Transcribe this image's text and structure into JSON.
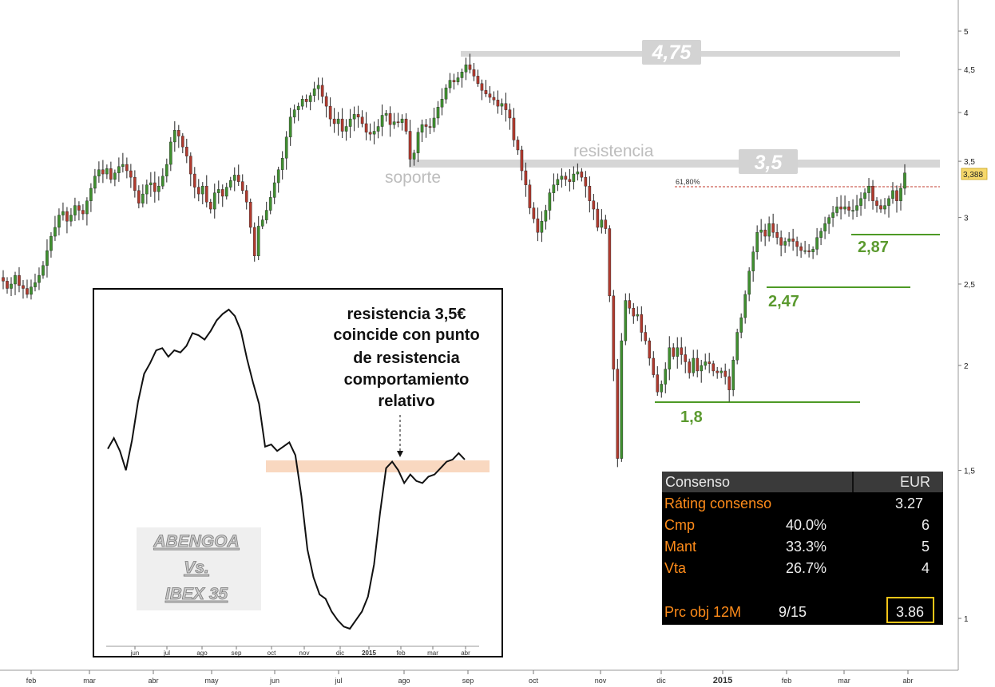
{
  "chart_data": [
    {
      "type": "candlestick",
      "title": "",
      "y_scale": "log",
      "ylim": [
        0.88,
        5.3
      ],
      "y_ticks": [
        "5",
        "4,5",
        "4",
        "3,5",
        "3",
        "2,5",
        "2",
        "1,5",
        "1"
      ],
      "y_tick_values": [
        5,
        4.5,
        4,
        3.5,
        3,
        2.5,
        2,
        1.5,
        1
      ],
      "x_ticks": [
        "feb",
        "mar",
        "abr",
        "may",
        "jun",
        "jul",
        "ago",
        "sep",
        "oct",
        "nov",
        "dic",
        "2015",
        "feb",
        "mar",
        "abr"
      ],
      "last_price_label": "3,388",
      "fibonacci_label": "61,80%",
      "annotations": [
        {
          "text": "4,75",
          "value": 4.75,
          "style": "gray-band"
        },
        {
          "text": "3,5",
          "value": 3.5,
          "style": "gray-band"
        },
        {
          "text": "resistencia",
          "style": "gray-text"
        },
        {
          "text": "soporte",
          "style": "gray-text"
        },
        {
          "text": "2,87",
          "value": 2.87,
          "style": "green-support"
        },
        {
          "text": "2,47",
          "value": 2.47,
          "style": "green-support"
        },
        {
          "text": "1,8",
          "value": 1.8,
          "style": "green-support"
        }
      ],
      "series": [
        {
          "values": [
            2.52,
            2.47,
            2.5,
            2.56,
            2.49,
            2.47,
            2.43,
            2.48,
            2.51,
            2.56,
            2.63,
            2.74,
            2.85,
            2.92,
            3.02,
            3.05,
            2.97,
            3.02,
            3.1,
            3.06,
            3.03,
            3.14,
            3.25,
            3.36,
            3.42,
            3.38,
            3.43,
            3.33,
            3.39,
            3.45,
            3.47,
            3.41,
            3.35,
            3.23,
            3.12,
            3.2,
            3.28,
            3.3,
            3.22,
            3.27,
            3.36,
            3.47,
            3.69,
            3.81,
            3.75,
            3.64,
            3.55,
            3.38,
            3.26,
            3.2,
            3.27,
            3.13,
            3.07,
            3.21,
            3.24,
            3.18,
            3.26,
            3.32,
            3.37,
            3.31,
            3.23,
            3.13,
            2.92,
            2.7,
            2.93,
            2.98,
            3.06,
            3.17,
            3.3,
            3.42,
            3.53,
            3.74,
            3.95,
            4.03,
            4.07,
            4.15,
            4.12,
            4.19,
            4.27,
            4.31,
            4.18,
            4.07,
            3.93,
            3.88,
            3.93,
            3.8,
            3.85,
            3.93,
            3.98,
            3.95,
            3.88,
            3.79,
            3.77,
            3.8,
            3.85,
            3.97,
            3.99,
            3.87,
            3.9,
            3.89,
            3.93,
            3.8,
            3.52,
            3.58,
            3.79,
            3.87,
            3.85,
            3.84,
            3.94,
            4.06,
            4.15,
            4.28,
            4.37,
            4.35,
            4.4,
            4.47,
            4.56,
            4.5,
            4.42,
            4.33,
            4.25,
            4.21,
            4.17,
            4.14,
            4.07,
            4.1,
            4.03,
            3.94,
            3.71,
            3.61,
            3.41,
            3.28,
            3.08,
            2.99,
            2.88,
            2.97,
            3.06,
            3.21,
            3.28,
            3.33,
            3.36,
            3.33,
            3.31,
            3.38,
            3.4,
            3.35,
            3.27,
            3.14,
            3.07,
            2.92,
            2.98,
            2.91,
            2.42,
            1.98,
            1.55,
            2.14,
            2.39,
            2.34,
            2.29,
            2.3,
            2.19,
            2.14,
            2.04,
            1.95,
            1.86,
            1.9,
            1.98,
            2.1,
            2.05,
            2.1,
            2.06,
            2.02,
            1.96,
            2.04,
            1.97,
            2.0,
            2.02,
            2.01,
            1.97,
            1.96,
            1.97,
            1.94,
            1.87,
            2.03,
            2.19,
            2.28,
            2.43,
            2.59,
            2.73,
            2.88,
            2.9,
            2.85,
            2.95,
            2.88,
            2.84,
            2.78,
            2.81,
            2.83,
            2.81,
            2.77,
            2.74,
            2.74,
            2.73,
            2.75,
            2.84,
            2.89,
            2.95,
            3.0,
            3.04,
            3.09,
            3.07,
            3.09,
            3.06,
            3.06,
            3.1,
            3.16,
            3.21,
            3.27,
            3.14,
            3.1,
            3.07,
            3.1,
            3.16,
            3.23,
            3.14,
            3.25,
            3.39
          ]
        }
      ]
    },
    {
      "type": "line",
      "title": "",
      "x_ticks": [
        "jun",
        "jul",
        "ago",
        "sep",
        "oct",
        "nov",
        "dic",
        "2015",
        "feb",
        "mar",
        "abr"
      ],
      "highlight_band_label": "",
      "series": [
        {
          "values": [
            1.07,
            1.12,
            1.06,
            0.97,
            1.11,
            1.29,
            1.42,
            1.47,
            1.53,
            1.54,
            1.5,
            1.53,
            1.52,
            1.55,
            1.61,
            1.6,
            1.58,
            1.62,
            1.67,
            1.7,
            1.72,
            1.69,
            1.62,
            1.49,
            1.38,
            1.28,
            1.08,
            1.09,
            1.06,
            1.08,
            1.1,
            1.04,
            0.85,
            0.6,
            0.47,
            0.39,
            0.37,
            0.31,
            0.27,
            0.24,
            0.23,
            0.27,
            0.31,
            0.38,
            0.53,
            0.77,
            0.98,
            1.01,
            0.97,
            0.91,
            0.95,
            0.92,
            0.91,
            0.94,
            0.95,
            0.98,
            1.01,
            1.02,
            1.05,
            1.02
          ]
        }
      ]
    }
  ],
  "inset": {
    "caption_lines": [
      "resistencia 3,5€",
      "coincide con punto",
      "de resistencia",
      "comportamiento",
      "relativo"
    ],
    "logo_lines": [
      "ABENGOA",
      "Vs.",
      "IBEX 35"
    ]
  },
  "consensus": {
    "header_label": "Consenso",
    "header_currency": "EUR",
    "rating_label": "Ráting consenso",
    "rating_value": "3.27",
    "rows": [
      {
        "label": "Cmp",
        "pct": "40.0%",
        "count": "6"
      },
      {
        "label": "Mant",
        "pct": "33.3%",
        "count": "5"
      },
      {
        "label": "Vta",
        "pct": "26.7%",
        "count": "4"
      }
    ],
    "target_label": "Prc obj 12M",
    "target_date": "9/15",
    "target_value": "3.86"
  },
  "colors": {
    "up_candle": "#3f8f2f",
    "down_candle": "#b03a2e",
    "gray_band": "#d6d6d6",
    "green_line": "#4d9a25",
    "fib_line": "#c0392b",
    "inset_band": "#f9d8c0",
    "price_flag": "#f6d86b"
  }
}
